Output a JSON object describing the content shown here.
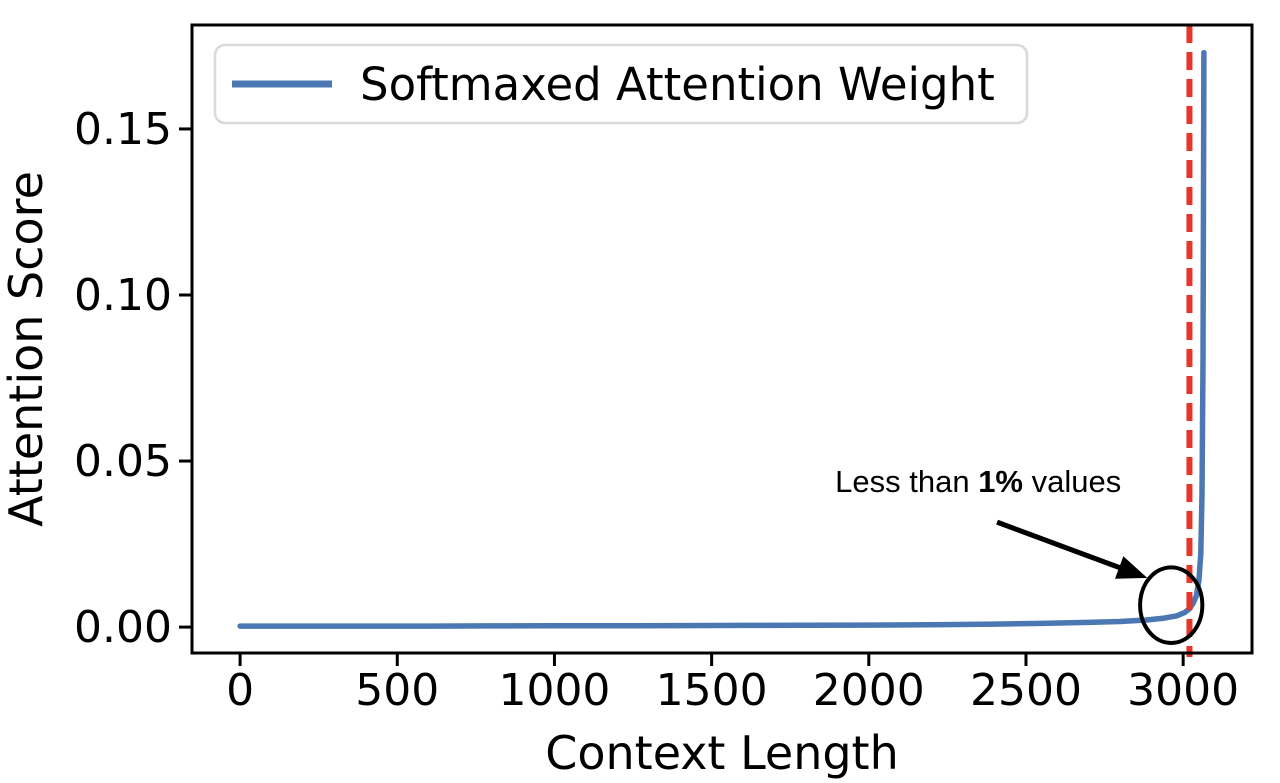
{
  "figure": {
    "background": "#ffffff",
    "spine_color": "#000000"
  },
  "chart_data": {
    "type": "line",
    "title": "",
    "xlabel": "Context Length",
    "ylabel": "Attention Score",
    "grid": false,
    "xlim": [
      -153,
      3219
    ],
    "ylim": [
      -0.0078,
      0.1813
    ],
    "x_ticks": [
      {
        "v": 0,
        "label": "0"
      },
      {
        "v": 500,
        "label": "500"
      },
      {
        "v": 1000,
        "label": "1000"
      },
      {
        "v": 1500,
        "label": "1500"
      },
      {
        "v": 2000,
        "label": "2000"
      },
      {
        "v": 2500,
        "label": "2500"
      },
      {
        "v": 3000,
        "label": "3000"
      }
    ],
    "y_ticks": [
      {
        "v": 0.0,
        "label": "0.00"
      },
      {
        "v": 0.05,
        "label": "0.05"
      },
      {
        "v": 0.1,
        "label": "0.10"
      },
      {
        "v": 0.15,
        "label": "0.15"
      }
    ],
    "legend": {
      "position": "upper left",
      "entries": [
        {
          "label": "Softmaxed Attention Weight",
          "color": "#4b78b2"
        }
      ]
    },
    "series": [
      {
        "name": "Softmaxed Attention Weight",
        "color": "#4b78b2",
        "line_width": 5.5,
        "x": [
          0,
          200,
          400,
          600,
          800,
          1000,
          1200,
          1400,
          1600,
          1800,
          2000,
          2200,
          2400,
          2550,
          2700,
          2800,
          2880,
          2940,
          2980,
          3005,
          3020,
          3032,
          3042,
          3050,
          3056,
          3060,
          3063,
          3065,
          3066
        ],
        "y": [
          0.0003,
          0.0003,
          0.0003,
          0.0003,
          0.00035,
          0.0004,
          0.0004,
          0.00045,
          0.0005,
          0.00055,
          0.0006,
          0.0007,
          0.0009,
          0.0011,
          0.0014,
          0.0017,
          0.0021,
          0.0027,
          0.0034,
          0.0044,
          0.0055,
          0.0072,
          0.0095,
          0.014,
          0.022,
          0.04,
          0.08,
          0.14,
          0.173
        ]
      }
    ],
    "peak": {
      "x": 3066,
      "y": 0.173
    },
    "vline": {
      "x": 3020,
      "color": "#e8352a",
      "style": "dashed",
      "width": 6,
      "dash": "18 9"
    },
    "annotation": {
      "text_prefix": "Less than ",
      "text_bold": "1%",
      "text_suffix": " values",
      "color": "#000000",
      "text_pos": {
        "x": 2348,
        "y": 0.044
      },
      "arrow_from": {
        "x": 2408,
        "y": 0.0316
      },
      "arrow_to": {
        "x": 2886,
        "y": 0.0148
      },
      "circle": {
        "x": 2962,
        "y": 0.0066,
        "rx": 99,
        "ry": 0.0114
      }
    }
  }
}
